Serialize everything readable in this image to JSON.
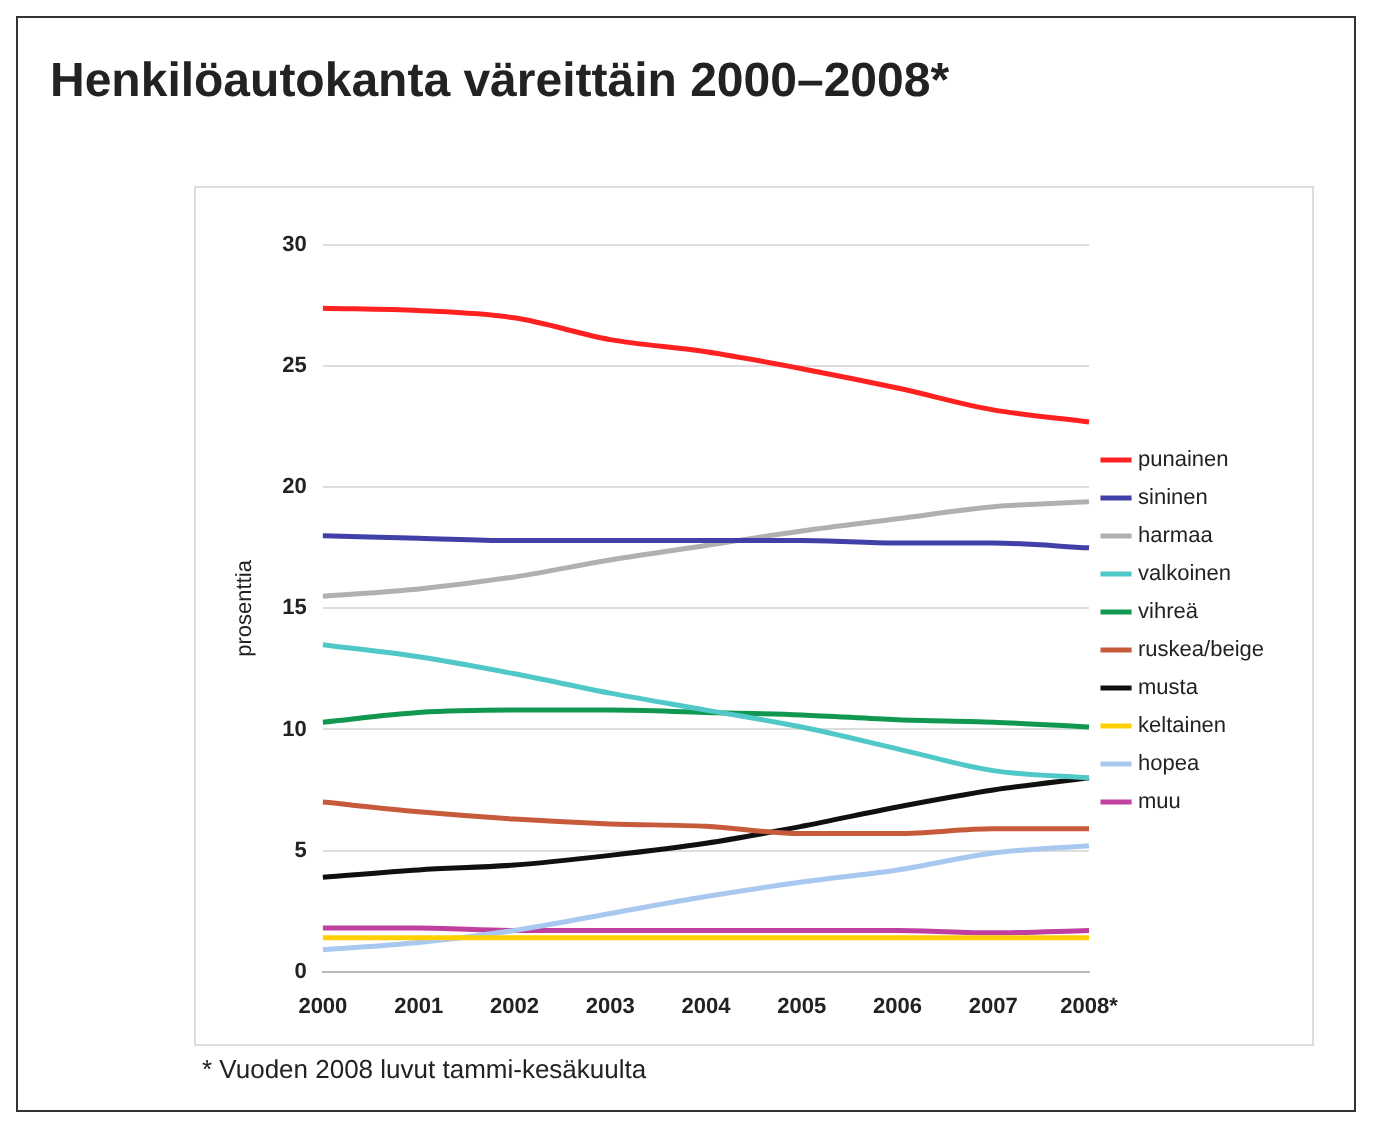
{
  "chart_data": {
    "type": "line",
    "title": "Henkilöautokanta väreittäin 2000–2008*",
    "ylabel": "prosenttia",
    "annotations": [
      "* Vuoden 2008 luvut tammi-kesäkuulta"
    ],
    "categories": [
      "2000",
      "2001",
      "2002",
      "2003",
      "2004",
      "2005",
      "2006",
      "2007",
      "2008*"
    ],
    "ylim": [
      0,
      30
    ],
    "yticks": [
      0,
      5,
      10,
      15,
      20,
      25,
      30
    ],
    "grid": "y",
    "legend": "right",
    "marker": "none",
    "line_style": "solid",
    "series": [
      {
        "name": "punainen",
        "color": "#ff2020",
        "values": [
          27.4,
          27.3,
          27.0,
          26.1,
          25.6,
          24.9,
          24.1,
          23.2,
          22.7
        ]
      },
      {
        "name": "sininen",
        "color": "#4040a8",
        "values": [
          18.0,
          17.9,
          17.8,
          17.8,
          17.8,
          17.8,
          17.7,
          17.7,
          17.5
        ]
      },
      {
        "name": "harmaa",
        "color": "#b0b0b0",
        "values": [
          15.5,
          15.8,
          16.3,
          17.0,
          17.6,
          18.2,
          18.7,
          19.2,
          19.4
        ]
      },
      {
        "name": "valkoinen",
        "color": "#50c8c8",
        "values": [
          13.5,
          13.0,
          12.3,
          11.5,
          10.8,
          10.1,
          9.2,
          8.3,
          8.0
        ]
      },
      {
        "name": "vihreä",
        "color": "#109850",
        "values": [
          10.3,
          10.7,
          10.8,
          10.8,
          10.7,
          10.6,
          10.4,
          10.3,
          10.1
        ]
      },
      {
        "name": "ruskea/beige",
        "color": "#c85a3c",
        "values": [
          7.0,
          6.6,
          6.3,
          6.1,
          6.0,
          5.7,
          5.7,
          5.9,
          5.9
        ]
      },
      {
        "name": "musta",
        "color": "#101010",
        "values": [
          3.9,
          4.2,
          4.4,
          4.8,
          5.3,
          6.0,
          6.8,
          7.5,
          8.0
        ]
      },
      {
        "name": "keltainen",
        "color": "#ffd000",
        "values": [
          1.4,
          1.4,
          1.4,
          1.4,
          1.4,
          1.4,
          1.4,
          1.4,
          1.4
        ]
      },
      {
        "name": "hopea",
        "color": "#a8c8f0",
        "values": [
          0.9,
          1.2,
          1.7,
          2.4,
          3.1,
          3.7,
          4.2,
          4.9,
          5.2
        ]
      },
      {
        "name": "muu",
        "color": "#c040a0",
        "values": [
          1.8,
          1.8,
          1.7,
          1.7,
          1.7,
          1.7,
          1.7,
          1.6,
          1.7
        ]
      }
    ]
  }
}
